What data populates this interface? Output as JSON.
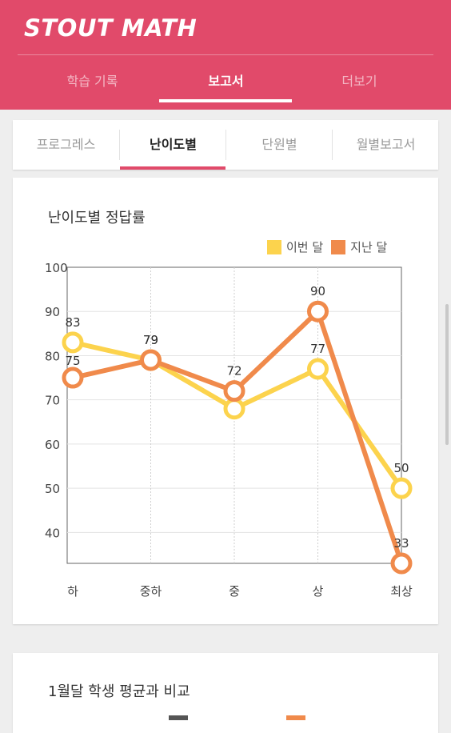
{
  "app": {
    "title": "STOUT MATH"
  },
  "top_tabs": [
    {
      "label": "학습 기록"
    },
    {
      "label": "보고서"
    },
    {
      "label": "더보기"
    }
  ],
  "top_tabs_active": "보고서",
  "sub_tabs": [
    {
      "label": "프로그레스"
    },
    {
      "label": "난이도별"
    },
    {
      "label": "단원별"
    },
    {
      "label": "월별보고서"
    }
  ],
  "sub_tabs_active": "난이도별",
  "card1": {
    "title": "난이도별 정답률"
  },
  "card2": {
    "title": "1월달 학생 평균과 비교"
  },
  "colors": {
    "brand": "#e14a6a",
    "this_month": "#fcd34d",
    "last_month": "#f08a4b"
  },
  "chart_data": {
    "type": "line",
    "title": "난이도별 정답률",
    "categories": [
      "하",
      "중하",
      "중",
      "상",
      "최상"
    ],
    "series": [
      {
        "name": "이번 달",
        "color": "#fcd34d",
        "values": [
          83,
          79,
          68,
          77,
          50
        ]
      },
      {
        "name": "지난 달",
        "color": "#f08a4b",
        "values": [
          75,
          79,
          72,
          90,
          33
        ]
      }
    ],
    "ylim": [
      33,
      100
    ],
    "yticks": [
      100,
      90,
      80,
      70,
      60,
      50,
      40
    ],
    "xlabel": "",
    "ylabel": "",
    "grid": true,
    "legend_position": "top-right"
  }
}
